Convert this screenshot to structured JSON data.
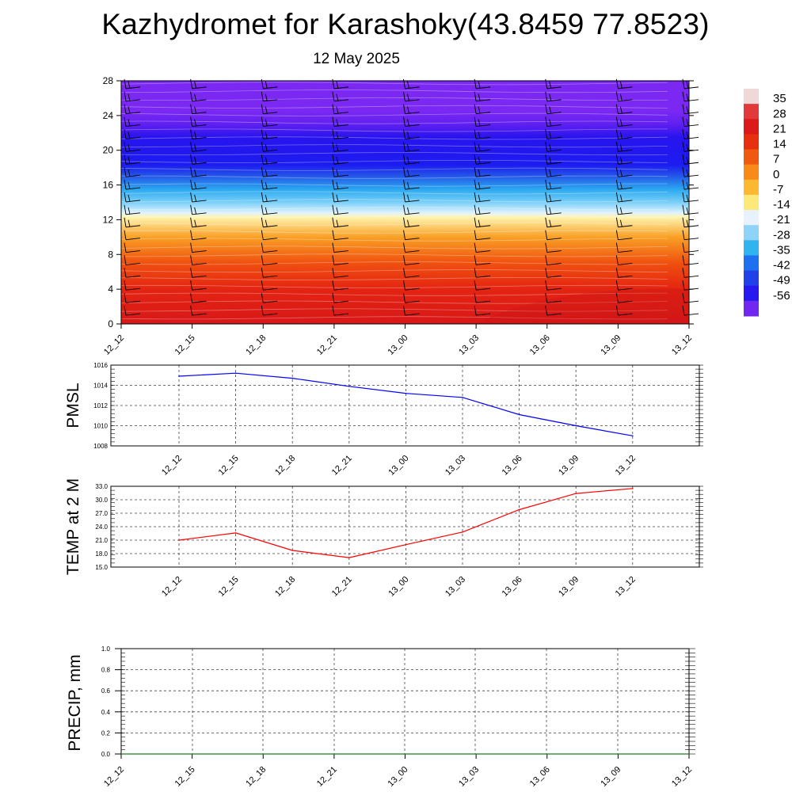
{
  "header": {
    "title": "Kazhydromet for Karashoky(43.8459 77.8523)",
    "date": "12 May 2025"
  },
  "colors": {
    "pmsl_line": "#0000ff",
    "temp_line": "#ff0000",
    "precip_line": "#1a7f1a",
    "grid": "#555555"
  },
  "chart_data": [
    {
      "id": "cross_section",
      "type": "heatmap",
      "x_ticks": [
        "12_12",
        "12_15",
        "12_18",
        "12_21",
        "13_00",
        "13_03",
        "13_06",
        "13_09",
        "13_12"
      ],
      "y_ticks": [
        0,
        4,
        8,
        12,
        16,
        20,
        24,
        28
      ],
      "ylim": [
        0,
        28
      ],
      "colorbar_labels": [
        35,
        28,
        21,
        14,
        7,
        0,
        -7,
        -14,
        -21,
        -28,
        -35,
        -42,
        -49,
        -56
      ],
      "colorbar_colors": [
        "#f0d8d8",
        "#e23a3a",
        "#dd1a1a",
        "#e63010",
        "#f05a10",
        "#f88a18",
        "#fbb830",
        "#fde87a",
        "#e8f2ff",
        "#8fd4f8",
        "#30b4f0",
        "#1e70ee",
        "#2040e8",
        "#2818f0",
        "#7028f0"
      ],
      "level_colors": [
        [
          0,
          "#d81818"
        ],
        [
          4,
          "#e42412"
        ],
        [
          7,
          "#f0500f"
        ],
        [
          10,
          "#f9a025"
        ],
        [
          12.3,
          "#fef4b0"
        ],
        [
          12.8,
          "#e0f2ff"
        ],
        [
          14,
          "#7ad0f8"
        ],
        [
          15.5,
          "#2aa8f0"
        ],
        [
          17,
          "#2458e8"
        ],
        [
          18.3,
          "#1c1cf0"
        ],
        [
          21.5,
          "#2814ee"
        ],
        [
          23,
          "#6020f0"
        ],
        [
          24.5,
          "#7a28f2"
        ],
        [
          28,
          "#7a28f2"
        ]
      ]
    },
    {
      "id": "pmsl",
      "type": "line",
      "ylabel": "PMSL",
      "x_ticks": [
        "12_12",
        "12_15",
        "12_18",
        "12_21",
        "13_00",
        "13_03",
        "13_06",
        "13_09",
        "13_12"
      ],
      "y_ticks": [
        "1008",
        "1010",
        "1012",
        "1014",
        "1016"
      ],
      "ylim": [
        1008,
        1016
      ],
      "series": [
        {
          "values": [
            1014.9,
            1015.2,
            1014.7,
            1013.9,
            1013.2,
            1012.8,
            1011.1,
            1010.0,
            1009.0
          ]
        }
      ]
    },
    {
      "id": "temp",
      "type": "line",
      "ylabel": "TEMP at 2 M",
      "x_ticks": [
        "12_12",
        "12_15",
        "12_18",
        "12_21",
        "13_00",
        "13_03",
        "13_06",
        "13_09",
        "13_12"
      ],
      "y_ticks": [
        "15.0",
        "18.0",
        "21.0",
        "24.0",
        "27.0",
        "30.0",
        "33.0"
      ],
      "ylim": [
        15,
        33
      ],
      "series": [
        {
          "values": [
            21.0,
            22.6,
            18.7,
            17.1,
            20.0,
            22.8,
            27.8,
            31.4,
            32.5
          ]
        }
      ]
    },
    {
      "id": "precip",
      "type": "line",
      "ylabel": "PRECIP, mm",
      "x_ticks": [
        "12_12",
        "12_15",
        "12_18",
        "12_21",
        "13_00",
        "13_03",
        "13_06",
        "13_09",
        "13_12"
      ],
      "y_ticks": [
        "0.0",
        "0.2",
        "0.4",
        "0.6",
        "0.8",
        "1.0"
      ],
      "ylim": [
        0,
        1
      ],
      "series": [
        {
          "values": [
            0,
            0,
            0,
            0,
            0,
            0,
            0,
            0,
            0
          ]
        }
      ]
    }
  ]
}
